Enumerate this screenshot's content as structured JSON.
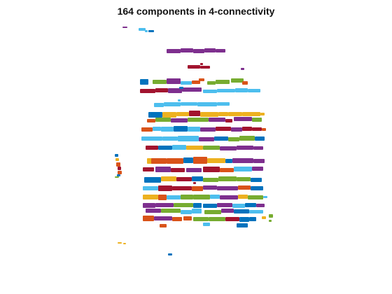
{
  "figure": {
    "title": "164 components in 4-connectivity"
  },
  "palette": {
    "blue": "#0072BD",
    "orange": "#D95319",
    "yellow": "#EDB120",
    "purple": "#7E2F8E",
    "green": "#77AC30",
    "cyan": "#4DBEEE",
    "red": "#A2142F"
  }
}
